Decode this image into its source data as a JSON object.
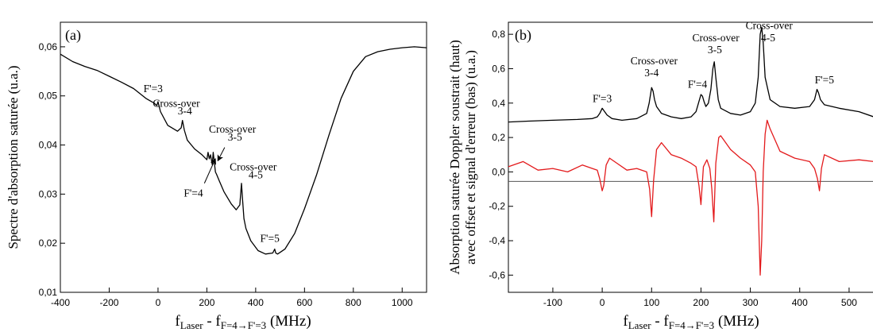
{
  "chart_data": [
    {
      "type": "line",
      "panel_label": "(a)",
      "ylabel": "Spectre d'absorption saturée  (u.a.)",
      "xlabel": {
        "main": "f",
        "sub1": "Laser",
        "mid": " - f",
        "sub2": "F=4→F'=3",
        "unit": " (MHz)"
      },
      "xlim": [
        -400,
        1100
      ],
      "ylim": [
        0.01,
        0.065
      ],
      "xticks": [
        -400,
        -200,
        0,
        200,
        400,
        600,
        800,
        1000
      ],
      "xtick_labels": [
        "-400",
        "-200",
        "0",
        "200",
        "400",
        "600",
        "800",
        "1000"
      ],
      "yticks": [
        0.01,
        0.02,
        0.03,
        0.04,
        0.05,
        0.06
      ],
      "ytick_labels": [
        "0,01",
        "0,02",
        "0,03",
        "0,04",
        "0,05",
        "0,06"
      ],
      "series": [
        {
          "color": "#000000",
          "x": [
            -400,
            -350,
            -300,
            -250,
            -200,
            -150,
            -100,
            -50,
            -15,
            -5,
            0,
            10,
            40,
            80,
            95,
            100,
            108,
            120,
            150,
            180,
            200,
            205,
            210,
            215,
            222,
            226,
            235,
            240,
            250,
            270,
            300,
            320,
            335,
            342,
            346,
            352,
            360,
            380,
            410,
            440,
            470,
            478,
            482,
            490,
            520,
            560,
            600,
            650,
            700,
            750,
            800,
            850,
            900,
            950,
            1000,
            1050,
            1100
          ],
          "y": [
            0.0585,
            0.057,
            0.056,
            0.0552,
            0.054,
            0.0528,
            0.0515,
            0.0495,
            0.0485,
            0.048,
            0.0488,
            0.0468,
            0.044,
            0.0428,
            0.0435,
            0.045,
            0.043,
            0.041,
            0.0392,
            0.038,
            0.037,
            0.0385,
            0.0372,
            0.038,
            0.036,
            0.0385,
            0.0345,
            0.034,
            0.0328,
            0.0305,
            0.028,
            0.0268,
            0.0278,
            0.0322,
            0.029,
            0.025,
            0.023,
            0.0205,
            0.0185,
            0.0178,
            0.018,
            0.0188,
            0.018,
            0.0178,
            0.0188,
            0.022,
            0.027,
            0.034,
            0.042,
            0.0495,
            0.055,
            0.058,
            0.059,
            0.0595,
            0.0598,
            0.06,
            0.0598
          ]
        }
      ],
      "annotations": [
        {
          "text": "F'=3",
          "x": -20,
          "y": 0.0508
        },
        {
          "text": "Cross-over",
          "x": 75,
          "y": 0.0478
        },
        {
          "text": "3-4",
          "x": 110,
          "y": 0.0462
        },
        {
          "text": "Cross-over",
          "x": 305,
          "y": 0.0425
        },
        {
          "text": "3-5",
          "x": 315,
          "y": 0.0409
        },
        {
          "text": "F'=4",
          "x": 145,
          "y": 0.0295
        },
        {
          "text": "Cross-over",
          "x": 390,
          "y": 0.0348
        },
        {
          "text": "4-5",
          "x": 400,
          "y": 0.0332
        },
        {
          "text": "F'=5",
          "x": 458,
          "y": 0.0203
        }
      ],
      "arrows": [
        {
          "from": [
            190,
            0.0322
          ],
          "to": [
            235,
            0.0372
          ]
        },
        {
          "from": [
            273,
            0.0395
          ],
          "to": [
            245,
            0.0368
          ]
        }
      ]
    },
    {
      "type": "line",
      "panel_label": "(b)",
      "ylabel": [
        "Absorption saturée Doppler soustrait (haut)",
        "avec offset et signal d'erreur (bas) (u.a.)"
      ],
      "xlabel": {
        "main": "f",
        "sub1": "Laser",
        "mid": " - f",
        "sub2": "F=4→F'=3",
        "unit": " (MHz)"
      },
      "xlim": [
        -190,
        550
      ],
      "ylim": [
        -0.7,
        0.87
      ],
      "xticks": [
        -100,
        0,
        100,
        200,
        300,
        400,
        500
      ],
      "xtick_labels": [
        "-100",
        "0",
        "100",
        "200",
        "300",
        "400",
        "500"
      ],
      "yticks": [
        -0.6,
        -0.4,
        -0.2,
        0.0,
        0.2,
        0.4,
        0.6,
        0.8
      ],
      "ytick_labels": [
        "-0,6",
        "-0,4",
        "-0,2",
        "0,0",
        "0,2",
        "0,4",
        "0,6",
        "0,8"
      ],
      "reference_line_y": -0.055,
      "series": [
        {
          "color": "#000000",
          "x": [
            -190,
            -150,
            -100,
            -50,
            -20,
            -10,
            -5,
            0,
            5,
            10,
            20,
            40,
            70,
            90,
            95,
            100,
            103,
            106,
            110,
            120,
            140,
            160,
            180,
            190,
            195,
            200,
            203,
            206,
            210,
            215,
            220,
            224,
            227,
            230,
            235,
            240,
            260,
            280,
            300,
            310,
            316,
            320,
            323,
            326,
            330,
            340,
            360,
            390,
            420,
            430,
            435,
            438,
            442,
            450,
            480,
            520,
            550
          ],
          "y": [
            0.29,
            0.295,
            0.3,
            0.305,
            0.31,
            0.32,
            0.34,
            0.37,
            0.35,
            0.33,
            0.31,
            0.3,
            0.31,
            0.34,
            0.4,
            0.49,
            0.47,
            0.42,
            0.38,
            0.34,
            0.32,
            0.31,
            0.32,
            0.35,
            0.4,
            0.45,
            0.44,
            0.41,
            0.38,
            0.4,
            0.48,
            0.6,
            0.64,
            0.55,
            0.42,
            0.37,
            0.34,
            0.33,
            0.35,
            0.4,
            0.55,
            0.8,
            0.84,
            0.75,
            0.55,
            0.42,
            0.38,
            0.37,
            0.38,
            0.42,
            0.48,
            0.46,
            0.42,
            0.39,
            0.37,
            0.35,
            0.32
          ]
        },
        {
          "color": "#e31a1c",
          "x": [
            -190,
            -160,
            -130,
            -100,
            -70,
            -40,
            -20,
            -10,
            -5,
            0,
            3,
            8,
            15,
            30,
            50,
            70,
            90,
            96,
            100,
            104,
            110,
            120,
            140,
            160,
            180,
            190,
            196,
            200,
            205,
            212,
            218,
            222,
            226,
            230,
            236,
            240,
            260,
            280,
            300,
            310,
            316,
            320,
            323,
            326,
            330,
            334,
            340,
            360,
            390,
            420,
            430,
            436,
            440,
            444,
            450,
            480,
            520,
            550
          ],
          "y": [
            0.03,
            0.06,
            0.01,
            0.02,
            0.0,
            0.04,
            0.02,
            0.01,
            -0.04,
            -0.11,
            -0.08,
            0.04,
            0.08,
            0.05,
            0.01,
            0.02,
            0.0,
            -0.1,
            -0.26,
            -0.05,
            0.13,
            0.17,
            0.1,
            0.08,
            0.05,
            0.03,
            -0.08,
            -0.19,
            0.03,
            0.07,
            0.02,
            -0.1,
            -0.29,
            0.05,
            0.2,
            0.21,
            0.13,
            0.08,
            0.04,
            0.0,
            -0.2,
            -0.6,
            -0.4,
            0.0,
            0.22,
            0.3,
            0.25,
            0.12,
            0.08,
            0.06,
            0.02,
            -0.04,
            -0.11,
            0.02,
            0.1,
            0.06,
            0.07,
            0.06
          ]
        }
      ],
      "annotations": [
        {
          "text": "F'=3",
          "x": 0,
          "y": 0.405
        },
        {
          "text": "Cross-over",
          "x": 105,
          "y": 0.625
        },
        {
          "text": "3-4",
          "x": 100,
          "y": 0.555
        },
        {
          "text": "F'=4",
          "x": 193,
          "y": 0.49
        },
        {
          "text": "Cross-over",
          "x": 230,
          "y": 0.76
        },
        {
          "text": "3-5",
          "x": 228,
          "y": 0.69
        },
        {
          "text": "Cross-over",
          "x": 338,
          "y": 0.83
        },
        {
          "text": "4-5",
          "x": 336,
          "y": 0.76
        },
        {
          "text": "F'=5",
          "x": 450,
          "y": 0.515
        }
      ]
    }
  ]
}
